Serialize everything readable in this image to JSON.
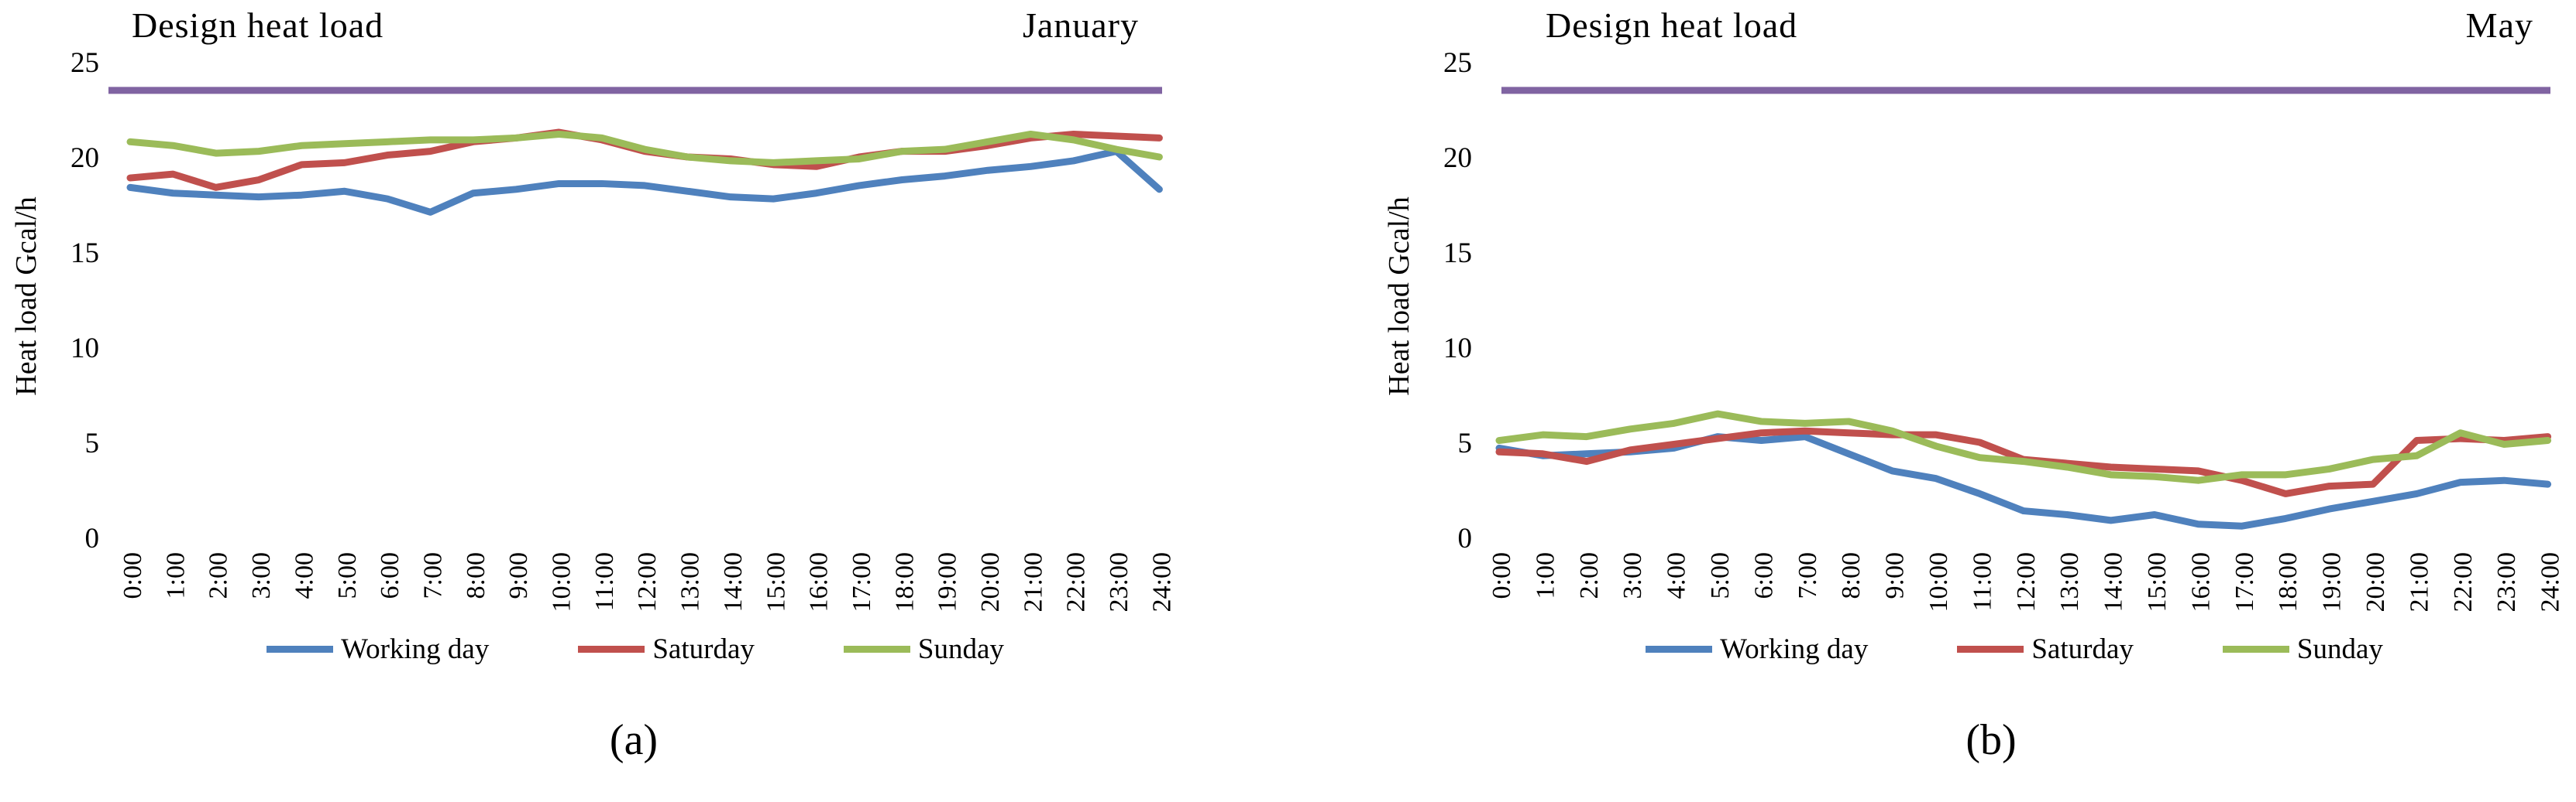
{
  "figure": {
    "captions": [
      "(a)",
      "(b)"
    ]
  },
  "chart_data": [
    {
      "type": "line",
      "title": "Design heat load",
      "month": "January",
      "ylabel": "Heat load Gcal/h",
      "ylim": [
        0,
        25
      ],
      "ytick_step": 5,
      "yticks": [
        0,
        5,
        10,
        15,
        20,
        25
      ],
      "grid": "off",
      "legend_position": "bottom",
      "design_heat_load": 23.5,
      "design_color": "#8064A2",
      "categories": [
        "0:00",
        "1:00",
        "2:00",
        "3:00",
        "4:00",
        "5:00",
        "6:00",
        "7:00",
        "8:00",
        "9:00",
        "10:00",
        "11:00",
        "12:00",
        "13:00",
        "14:00",
        "15:00",
        "16:00",
        "17:00",
        "18:00",
        "19:00",
        "20:00",
        "21:00",
        "22:00",
        "23:00",
        "24:00"
      ],
      "series": [
        {
          "name": "Working day",
          "color": "#4F81BD",
          "values": [
            18.4,
            18.1,
            18.0,
            17.9,
            18.0,
            18.2,
            17.8,
            17.1,
            18.1,
            18.3,
            18.6,
            18.6,
            18.5,
            18.2,
            17.9,
            17.8,
            18.1,
            18.5,
            18.8,
            19.0,
            19.3,
            19.5,
            19.8,
            20.3,
            18.3
          ]
        },
        {
          "name": "Saturday",
          "color": "#C0504D",
          "values": [
            18.9,
            19.1,
            18.4,
            18.8,
            19.6,
            19.7,
            20.1,
            20.3,
            20.8,
            21.0,
            21.3,
            20.9,
            20.3,
            20.0,
            19.9,
            19.6,
            19.5,
            20.0,
            20.3,
            20.3,
            20.6,
            21.0,
            21.2,
            21.1,
            21.0
          ]
        },
        {
          "name": "Sunday",
          "color": "#9BBB59",
          "values": [
            20.8,
            20.6,
            20.2,
            20.3,
            20.6,
            20.7,
            20.8,
            20.9,
            20.9,
            21.0,
            21.2,
            21.0,
            20.4,
            20.0,
            19.8,
            19.7,
            19.8,
            19.9,
            20.3,
            20.4,
            20.8,
            21.2,
            20.9,
            20.4,
            20.0
          ]
        }
      ]
    },
    {
      "type": "line",
      "title": "Design heat load",
      "month": "May",
      "ylabel": "Heat load Gcal/h",
      "ylim": [
        0,
        25
      ],
      "ytick_step": 5,
      "yticks": [
        0,
        5,
        10,
        15,
        20,
        25
      ],
      "grid": "off",
      "legend_position": "bottom",
      "design_heat_load": 23.5,
      "design_color": "#8064A2",
      "categories": [
        "0:00",
        "1:00",
        "2:00",
        "3:00",
        "4:00",
        "5:00",
        "6:00",
        "7:00",
        "8:00",
        "9:00",
        "10:00",
        "11:00",
        "12:00",
        "13:00",
        "14:00",
        "15:00",
        "16:00",
        "17:00",
        "18:00",
        "19:00",
        "20:00",
        "21:00",
        "22:00",
        "23:00",
        "24:00"
      ],
      "series": [
        {
          "name": "Working day",
          "color": "#4F81BD",
          "values": [
            4.7,
            4.3,
            4.4,
            4.5,
            4.7,
            5.3,
            5.1,
            5.3,
            4.4,
            3.5,
            3.1,
            2.3,
            1.4,
            1.2,
            0.9,
            1.2,
            0.7,
            0.6,
            1.0,
            1.5,
            1.9,
            2.3,
            2.9,
            3.0,
            2.8
          ]
        },
        {
          "name": "Saturday",
          "color": "#C0504D",
          "values": [
            4.5,
            4.4,
            4.0,
            4.6,
            4.9,
            5.2,
            5.5,
            5.6,
            5.5,
            5.4,
            5.4,
            5.0,
            4.1,
            3.9,
            3.7,
            3.6,
            3.5,
            3.0,
            2.3,
            2.7,
            2.8,
            5.1,
            5.2,
            5.1,
            5.3
          ]
        },
        {
          "name": "Sunday",
          "color": "#9BBB59",
          "values": [
            5.1,
            5.4,
            5.3,
            5.7,
            6.0,
            6.5,
            6.1,
            6.0,
            6.1,
            5.6,
            4.8,
            4.2,
            4.0,
            3.7,
            3.3,
            3.2,
            3.0,
            3.3,
            3.3,
            3.6,
            4.1,
            4.3,
            5.5,
            4.9,
            5.1
          ]
        }
      ]
    }
  ]
}
